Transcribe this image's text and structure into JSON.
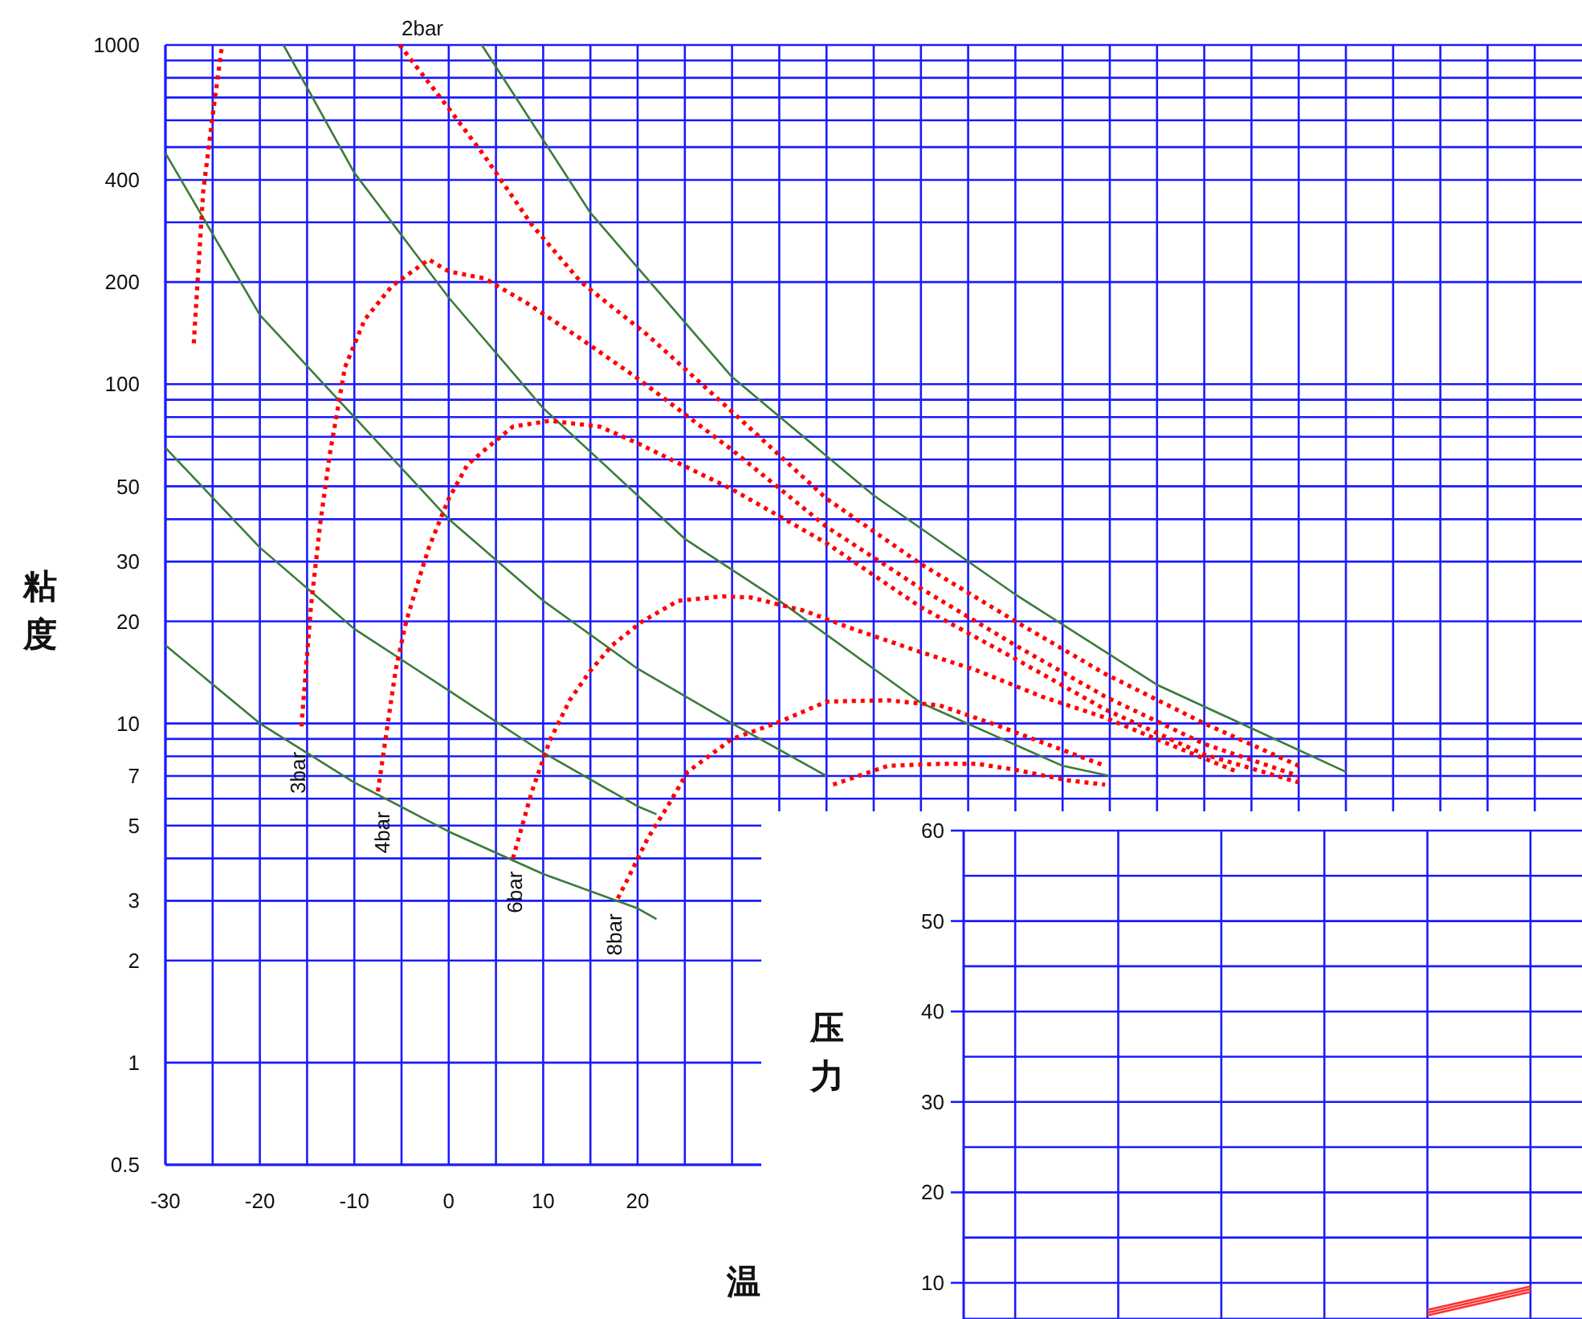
{
  "chart_data": [
    {
      "type": "line",
      "xlabel": "温",
      "ylabel": "粘度",
      "log": "y",
      "grid": true,
      "xlim": [
        -30,
        120
      ],
      "xticks": [
        -30,
        {
          "value": -25,
          "label": null
        },
        -20,
        {
          "value": -15,
          "label": null
        },
        -10,
        {
          "value": -5,
          "label": null
        },
        0,
        {
          "value": 5,
          "label": null
        },
        10,
        {
          "value": 15,
          "label": null
        },
        20,
        {
          "value": 25,
          "label": null
        },
        {
          "value": 30,
          "label": null
        },
        {
          "value": 35,
          "label": null
        },
        {
          "value": 40,
          "label": null
        },
        {
          "value": 45,
          "label": null
        },
        {
          "value": 50,
          "label": null
        },
        {
          "value": 55,
          "label": null
        },
        {
          "value": 60,
          "label": null
        },
        {
          "value": 65,
          "label": null
        },
        {
          "value": 70,
          "label": null
        },
        {
          "value": 75,
          "label": null
        },
        {
          "value": 80,
          "label": null
        },
        {
          "value": 85,
          "label": null
        },
        {
          "value": 90,
          "label": null
        },
        {
          "value": 95,
          "label": null
        },
        {
          "value": 100,
          "label": null
        },
        {
          "value": 105,
          "label": null
        },
        {
          "value": 110,
          "label": null
        },
        {
          "value": 115,
          "label": null
        }
      ],
      "ylim": [
        0.5,
        1000
      ],
      "yticks": [
        0.5,
        1,
        2,
        3,
        {
          "value": 4,
          "label": null
        },
        5,
        {
          "value": 6,
          "label": null
        },
        7,
        {
          "value": 8,
          "label": null
        },
        {
          "value": 9,
          "label": null
        },
        10,
        20,
        30,
        {
          "value": 40,
          "label": null
        },
        50,
        {
          "value": 60,
          "label": null
        },
        {
          "value": 70,
          "label": null
        },
        {
          "value": 80,
          "label": null
        },
        {
          "value": 90,
          "label": null
        },
        100,
        200,
        {
          "value": 300,
          "label": null
        },
        400,
        {
          "value": 500,
          "label": null
        },
        {
          "value": 600,
          "label": null
        },
        {
          "value": 700,
          "label": null
        },
        {
          "value": 800,
          "label": null
        },
        {
          "value": 900,
          "label": null
        },
        1000
      ],
      "series": [
        {
          "color": "#3c7a3c",
          "line_style": "solid",
          "x": [
            3.5,
            15,
            30,
            45,
            60,
            75,
            95
          ],
          "values": [
            1000,
            320,
            105,
            47,
            24,
            13,
            7.2
          ]
        },
        {
          "color": "#3c7a3c",
          "line_style": "solid",
          "x": [
            -17.5,
            -10,
            0,
            10,
            20,
            25,
            35,
            50,
            65,
            70
          ],
          "values": [
            1000,
            420,
            180,
            85,
            47,
            35,
            23,
            11.5,
            7.5,
            7
          ]
        },
        {
          "color": "#3c7a3c",
          "line_style": "solid",
          "x": [
            -30,
            -20,
            -10,
            0,
            10,
            20,
            30,
            40
          ],
          "values": [
            480,
            160,
            80,
            40,
            23,
            14.5,
            10,
            7
          ]
        },
        {
          "color": "#3c7a3c",
          "line_style": "solid",
          "x": [
            -30,
            -20,
            -10,
            0,
            10,
            20,
            22
          ],
          "values": [
            65,
            33,
            19,
            12.5,
            8.2,
            5.7,
            5.4
          ]
        },
        {
          "color": "#3c7a3c",
          "line_style": "solid",
          "x": [
            -30,
            -20,
            -10,
            0,
            10,
            20,
            22
          ],
          "values": [
            17,
            10,
            6.7,
            4.8,
            3.6,
            2.85,
            2.65
          ]
        },
        {
          "color": "#ff0000",
          "line_style": "dotted",
          "x": [
            -27,
            -26,
            -24.9,
            -24,
            -15,
            -5.2,
            0,
            3.8,
            8.8,
            14,
            21,
            30,
            40,
            50,
            60,
            69.5,
            80,
            90
          ],
          "values": [
            132,
            370,
            650,
            1000,
            null,
            1000,
            650,
            470,
            295,
            200,
            140,
            83,
            46,
            29.5,
            20,
            14,
            10,
            7.5
          ]
        },
        {
          "color": "#ff0000",
          "line_style": "dotted",
          "x": [
            -15.6,
            -14.6,
            -13.6,
            -12.6,
            -11,
            -8.9,
            -6,
            -2.1,
            0,
            3.8,
            8.2,
            14,
            20,
            30,
            40,
            50,
            60,
            69.5,
            80,
            90
          ],
          "values": [
            9.8,
            22,
            39,
            62,
            112,
            155,
            195,
            233,
            215,
            205,
            174,
            136,
            104,
            64,
            38,
            25,
            17,
            12,
            8.7,
            7.0
          ]
        },
        {
          "color": "#ff0000",
          "line_style": "dotted",
          "x": [
            -7.5,
            -6.5,
            -5.6,
            -4.5,
            -3,
            -2.1,
            0,
            2,
            4.1,
            6.8,
            10.7,
            16,
            20,
            30,
            40,
            50,
            60,
            69.5,
            80,
            90
          ],
          "values": [
            6.3,
            9.8,
            14.5,
            20,
            27.5,
            33,
            46,
            58,
            65,
            75,
            78,
            75,
            67,
            49,
            34,
            22,
            15.5,
            11,
            8.1,
            6.7
          ]
        },
        {
          "color": "#ff0000",
          "line_style": "dotted",
          "x": [
            6.8,
            8.8,
            10.7,
            12.8,
            15,
            17.3,
            20.5,
            24.3,
            29,
            32,
            37.6,
            42.8,
            49.5,
            56,
            62.8,
            69.5,
            76.2,
            83.5
          ],
          "values": [
            4.0,
            6.3,
            8.9,
            11.7,
            14.3,
            17,
            20,
            23,
            23.7,
            23.5,
            21.5,
            19,
            16.4,
            14.3,
            12,
            10.4,
            8.7,
            7.2
          ]
        },
        {
          "color": "#ff0000",
          "line_style": "dotted",
          "x": [
            17.9,
            19,
            20.2,
            21.1,
            22.2,
            23.5,
            25.3,
            30,
            35,
            40,
            46.5,
            52,
            57.5,
            62.8,
            69.5
          ],
          "values": [
            3.05,
            3.5,
            4.1,
            4.6,
            5.15,
            5.9,
            7.2,
            9,
            10.1,
            11.6,
            11.7,
            11.3,
            10,
            8.8,
            7.5
          ]
        },
        {
          "color": "#ff0000",
          "line_style": "dotted",
          "x": [
            40.7,
            46.5,
            52,
            56,
            60,
            65.5,
            69.5
          ],
          "values": [
            6.6,
            7.5,
            7.6,
            7.6,
            7.3,
            6.8,
            6.6
          ]
        }
      ],
      "annotations": [
        "2bar",
        {
          "text": "3bar",
          "x": -16,
          "y": 9
        },
        {
          "text": "4bar",
          "x": -7,
          "y": 6
        },
        {
          "text": "6bar",
          "x": 7,
          "y": 4
        },
        {
          "text": "8bar",
          "x": 17.5,
          "y": 3
        }
      ]
    },
    {
      "type": "line",
      "ylabel": "压力",
      "grid": true,
      "tick_labels": "y",
      "categories": [
        null,
        null,
        null,
        null,
        null,
        null
      ],
      "ylim": [
        6,
        60
      ],
      "yticks": [
        10,
        {
          "value": 15,
          "label": null
        },
        20,
        {
          "value": 25,
          "label": null
        },
        30,
        {
          "value": 35,
          "label": null
        },
        40,
        {
          "value": 45,
          "label": null
        },
        50,
        {
          "value": 55,
          "label": null
        },
        60
      ],
      "series": [
        {
          "color": "#ff3030",
          "line_style": "solid",
          "values": [
            null,
            null,
            null,
            null,
            6.4,
            9.0
          ]
        },
        {
          "color": "#ff3030",
          "line_style": "solid",
          "values": [
            null,
            null,
            null,
            null,
            6.7,
            9.3
          ]
        },
        {
          "color": "#ff3030",
          "line_style": "solid",
          "values": [
            null,
            null,
            null,
            null,
            7.0,
            9.6
          ]
        }
      ]
    }
  ]
}
